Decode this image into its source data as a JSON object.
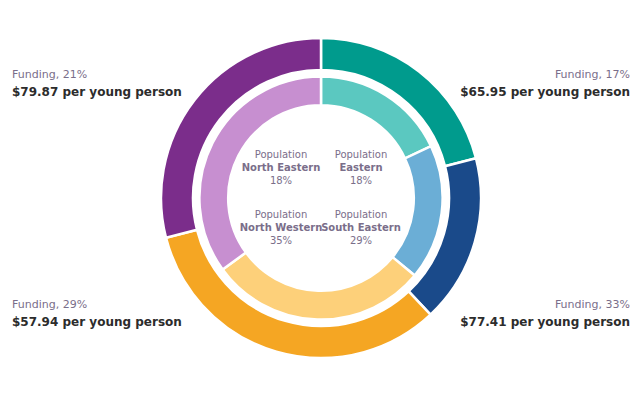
{
  "chart_data": {
    "type": "donut",
    "categories": [
      "North Eastern",
      "Eastern",
      "South Eastern",
      "North Western"
    ],
    "series": [
      {
        "colors": [
          "#009B8D",
          "#1A4A8A",
          "#F5A623",
          "#7B2D8B"
        ],
        "values": [
          21,
          17,
          33,
          29
        ],
        "value_labels": [
          "Funding, 21%",
          "Funding, 17%",
          "Funding, 33%",
          "Funding, 29%"
        ]
      },
      {
        "name": "Population",
        "colors": [
          "#5BC8C0",
          "#6BAED6",
          "#FDD07A",
          "#C78FD0"
        ],
        "values": [
          18,
          18,
          29,
          35
        ],
        "value_labels": [
          "18%",
          "18%",
          "29%",
          "35%"
        ]
      }
    ],
    "annotations": [
      "$79.87 per young person",
      "$65.95 per young person",
      "$77.41 per young person",
      "$57.94 per young person"
    ],
    "data_labels": true
  }
}
